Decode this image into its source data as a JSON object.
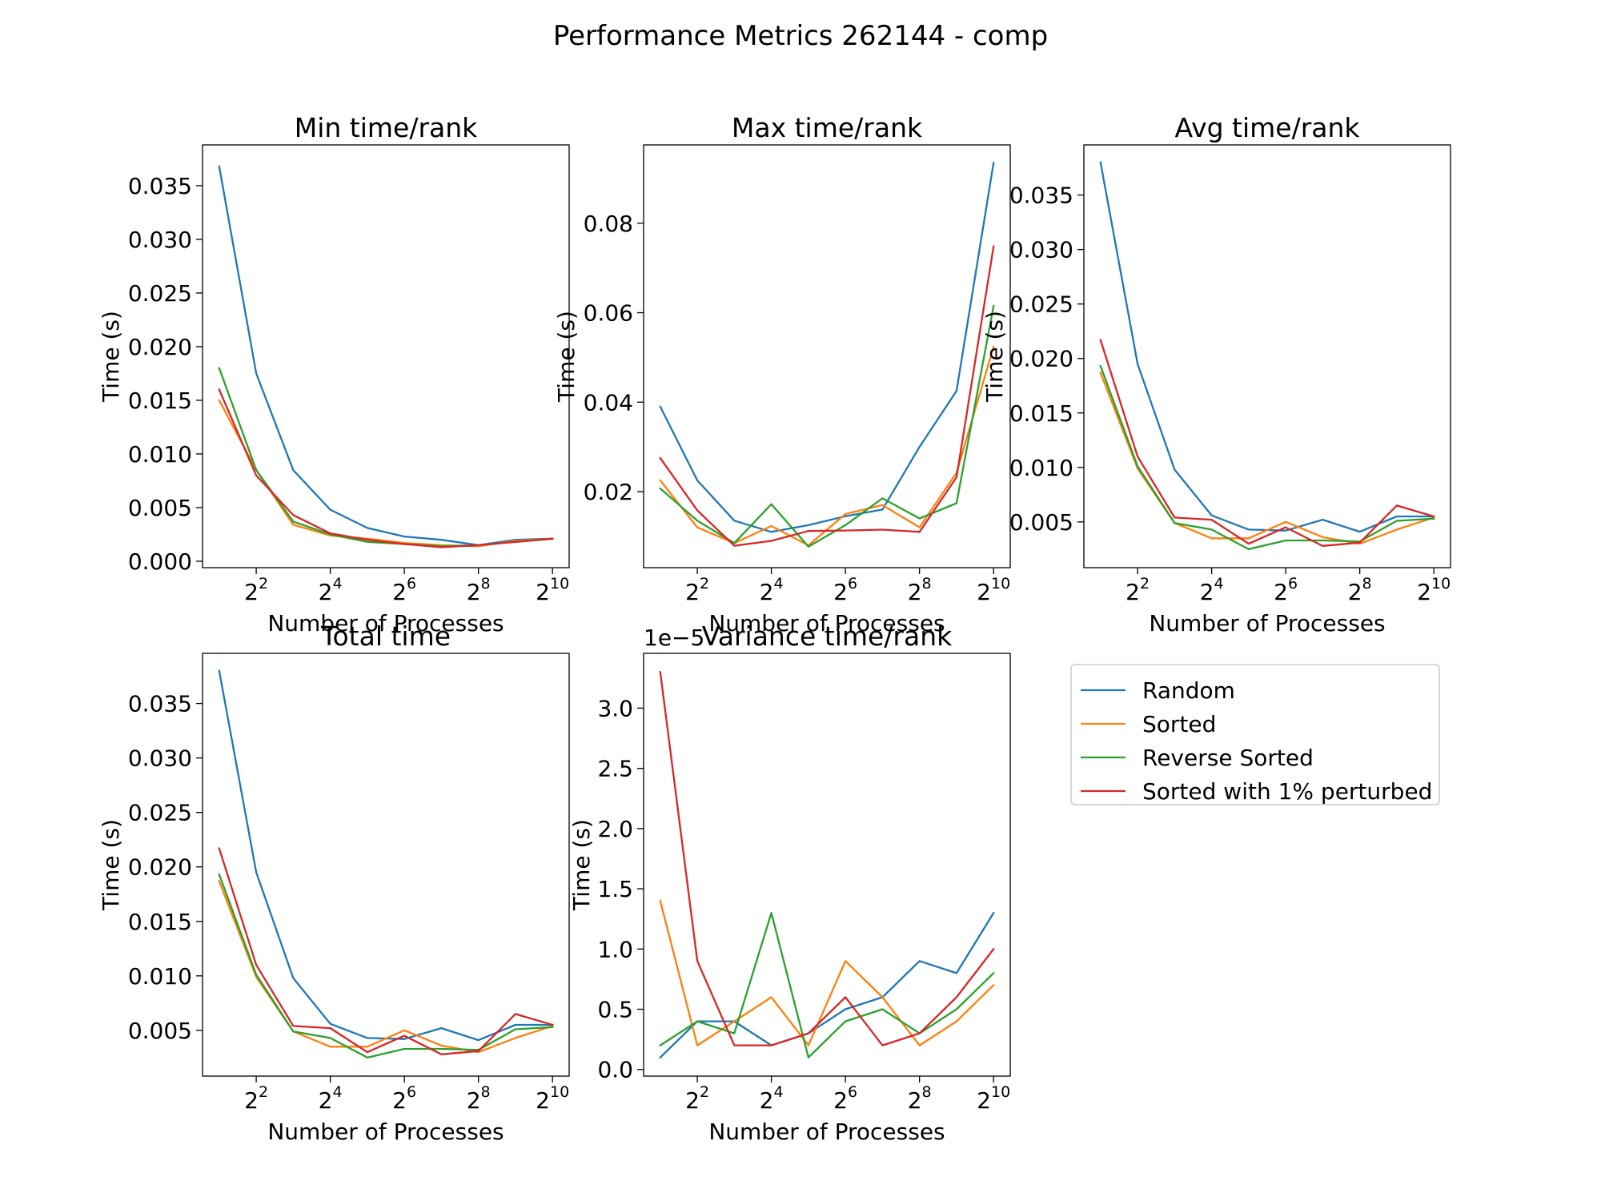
{
  "figure": {
    "title": "Performance Metrics 262144 - comp"
  },
  "colors": {
    "Random": "#1f77b4",
    "Sorted": "#ff7f0e",
    "Reverse Sorted": "#2ca02c",
    "Sorted with 1% perturbed": "#d62728"
  },
  "legend": {
    "placement": "right of bottom row",
    "entries": [
      "Random",
      "Sorted",
      "Reverse Sorted",
      "Sorted with 1% perturbed"
    ]
  },
  "chart_data": [
    {
      "type": "line",
      "title": "Min time/rank",
      "xlabel": "Number of Processes",
      "ylabel": "Time (s)",
      "xscale": "log2",
      "x": [
        2,
        4,
        8,
        16,
        32,
        64,
        128,
        256,
        512,
        1024
      ],
      "xticks": [
        {
          "base": "2",
          "exp": "2"
        },
        {
          "base": "2",
          "exp": "4"
        },
        {
          "base": "2",
          "exp": "6"
        },
        {
          "base": "2",
          "exp": "8"
        },
        {
          "base": "2",
          "exp": "10"
        }
      ],
      "ylim": [
        -0.0006,
        0.0388
      ],
      "yticks": [
        "0.000",
        "0.005",
        "0.010",
        "0.015",
        "0.020",
        "0.025",
        "0.030",
        "0.035"
      ],
      "offset": "",
      "series": [
        {
          "name": "Random",
          "values": [
            0.0368,
            0.0175,
            0.0085,
            0.0048,
            0.0031,
            0.0023,
            0.002,
            0.0015,
            0.002,
            0.0021
          ]
        },
        {
          "name": "Sorted",
          "values": [
            0.015,
            0.0085,
            0.0034,
            0.0024,
            0.0021,
            0.0017,
            0.0015,
            0.0014,
            0.0019,
            0.0021
          ]
        },
        {
          "name": "Reverse Sorted",
          "values": [
            0.018,
            0.0085,
            0.0037,
            0.0025,
            0.0018,
            0.0016,
            0.0014,
            0.0015,
            0.0018,
            0.0021
          ]
        },
        {
          "name": "Sorted with 1% perturbed",
          "values": [
            0.016,
            0.008,
            0.0043,
            0.0026,
            0.002,
            0.0016,
            0.0013,
            0.0015,
            0.0018,
            0.0021
          ]
        }
      ]
    },
    {
      "type": "line",
      "title": "Max time/rank",
      "xlabel": "Number of Processes",
      "ylabel": "Time (s)",
      "xscale": "log2",
      "x": [
        2,
        4,
        8,
        16,
        32,
        64,
        128,
        256,
        512,
        1024
      ],
      "xticks": [
        {
          "base": "2",
          "exp": "2"
        },
        {
          "base": "2",
          "exp": "4"
        },
        {
          "base": "2",
          "exp": "6"
        },
        {
          "base": "2",
          "exp": "8"
        },
        {
          "base": "2",
          "exp": "10"
        }
      ],
      "ylim": [
        0.003,
        0.0975
      ],
      "yticks": [
        "0.02",
        "0.04",
        "0.06",
        "0.08"
      ],
      "offset": "",
      "series": [
        {
          "name": "Random",
          "values": [
            0.039,
            0.0225,
            0.0135,
            0.011,
            0.0125,
            0.0145,
            0.016,
            0.03,
            0.0425,
            0.0935
          ]
        },
        {
          "name": "Sorted",
          "values": [
            0.0225,
            0.012,
            0.0085,
            0.0123,
            0.008,
            0.015,
            0.017,
            0.012,
            0.0242,
            0.0524
          ]
        },
        {
          "name": "Reverse Sorted",
          "values": [
            0.0207,
            0.0135,
            0.0085,
            0.0172,
            0.0077,
            0.0125,
            0.0185,
            0.014,
            0.0174,
            0.0615
          ]
        },
        {
          "name": "Sorted with 1% perturbed",
          "values": [
            0.0275,
            0.0158,
            0.0079,
            0.009,
            0.0112,
            0.0113,
            0.0115,
            0.011,
            0.0232,
            0.0748
          ]
        }
      ]
    },
    {
      "type": "line",
      "title": "Avg time/rank",
      "xlabel": "Number of Processes",
      "ylabel": "Time (s)",
      "xscale": "log2",
      "x": [
        2,
        4,
        8,
        16,
        32,
        64,
        128,
        256,
        512,
        1024
      ],
      "xticks": [
        {
          "base": "2",
          "exp": "2"
        },
        {
          "base": "2",
          "exp": "4"
        },
        {
          "base": "2",
          "exp": "6"
        },
        {
          "base": "2",
          "exp": "8"
        },
        {
          "base": "2",
          "exp": "10"
        }
      ],
      "ylim": [
        0.0008,
        0.0396
      ],
      "yticks": [
        "0.005",
        "0.010",
        "0.015",
        "0.020",
        "0.025",
        "0.030",
        "0.035"
      ],
      "offset": "",
      "series": [
        {
          "name": "Random",
          "values": [
            0.038,
            0.0195,
            0.0098,
            0.0056,
            0.0043,
            0.0042,
            0.0052,
            0.0041,
            0.0055,
            0.0055
          ]
        },
        {
          "name": "Sorted",
          "values": [
            0.0187,
            0.0099,
            0.0049,
            0.0035,
            0.0035,
            0.005,
            0.0036,
            0.003,
            0.0043,
            0.0054
          ]
        },
        {
          "name": "Reverse Sorted",
          "values": [
            0.0193,
            0.0101,
            0.0049,
            0.0043,
            0.0025,
            0.0033,
            0.0033,
            0.0032,
            0.0051,
            0.0053
          ]
        },
        {
          "name": "Sorted with 1% perturbed",
          "values": [
            0.0217,
            0.011,
            0.0054,
            0.0052,
            0.003,
            0.0045,
            0.0028,
            0.0031,
            0.0065,
            0.0055
          ]
        }
      ]
    },
    {
      "type": "line",
      "title": "Total time",
      "xlabel": "Number of Processes",
      "ylabel": "Time (s)",
      "xscale": "log2",
      "x": [
        2,
        4,
        8,
        16,
        32,
        64,
        128,
        256,
        512,
        1024
      ],
      "xticks": [
        {
          "base": "2",
          "exp": "2"
        },
        {
          "base": "2",
          "exp": "4"
        },
        {
          "base": "2",
          "exp": "6"
        },
        {
          "base": "2",
          "exp": "8"
        },
        {
          "base": "2",
          "exp": "10"
        }
      ],
      "ylim": [
        0.0008,
        0.0396
      ],
      "yticks": [
        "0.005",
        "0.010",
        "0.015",
        "0.020",
        "0.025",
        "0.030",
        "0.035"
      ],
      "offset": "",
      "series": [
        {
          "name": "Random",
          "values": [
            0.038,
            0.0195,
            0.0098,
            0.0056,
            0.0043,
            0.0042,
            0.0052,
            0.0041,
            0.0055,
            0.0055
          ]
        },
        {
          "name": "Sorted",
          "values": [
            0.0187,
            0.0099,
            0.0049,
            0.0035,
            0.0035,
            0.005,
            0.0036,
            0.003,
            0.0043,
            0.0054
          ]
        },
        {
          "name": "Reverse Sorted",
          "values": [
            0.0193,
            0.0101,
            0.0049,
            0.0043,
            0.0025,
            0.0033,
            0.0033,
            0.0032,
            0.0051,
            0.0053
          ]
        },
        {
          "name": "Sorted with 1% perturbed",
          "values": [
            0.0217,
            0.011,
            0.0054,
            0.0052,
            0.003,
            0.0045,
            0.0028,
            0.0031,
            0.0065,
            0.0055
          ]
        }
      ]
    },
    {
      "type": "line",
      "title": "Variance time/rank",
      "xlabel": "Number of Processes",
      "ylabel": "Time (s)",
      "xscale": "log2",
      "x": [
        2,
        4,
        8,
        16,
        32,
        64,
        128,
        256,
        512,
        1024
      ],
      "xticks": [
        {
          "base": "2",
          "exp": "2"
        },
        {
          "base": "2",
          "exp": "4"
        },
        {
          "base": "2",
          "exp": "6"
        },
        {
          "base": "2",
          "exp": "8"
        },
        {
          "base": "2",
          "exp": "10"
        }
      ],
      "ylim": [
        -0.055,
        3.455
      ],
      "yticks": [
        "0.0",
        "0.5",
        "1.0",
        "1.5",
        "2.0",
        "2.5",
        "3.0"
      ],
      "offset": "1e−5",
      "series": [
        {
          "name": "Random",
          "values": [
            0.1,
            0.4,
            0.4,
            0.2,
            0.3,
            0.5,
            0.6,
            0.9,
            0.8,
            1.3
          ]
        },
        {
          "name": "Sorted",
          "values": [
            1.4,
            0.2,
            0.4,
            0.6,
            0.2,
            0.9,
            0.6,
            0.2,
            0.4,
            0.7
          ]
        },
        {
          "name": "Reverse Sorted",
          "values": [
            0.2,
            0.4,
            0.3,
            1.3,
            0.1,
            0.4,
            0.5,
            0.3,
            0.5,
            0.8
          ]
        },
        {
          "name": "Sorted with 1% perturbed",
          "values": [
            3.3,
            0.9,
            0.2,
            0.2,
            0.3,
            0.6,
            0.2,
            0.3,
            0.6,
            1.0
          ]
        }
      ]
    }
  ]
}
